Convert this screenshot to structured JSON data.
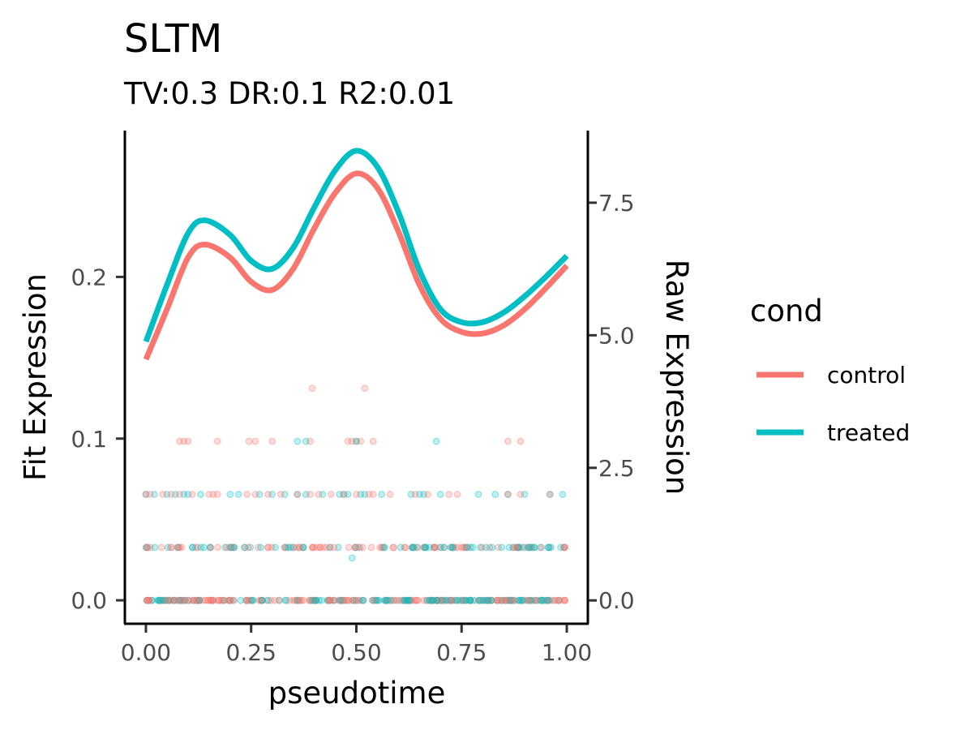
{
  "chart_data": {
    "type": "line",
    "title": "SLTM",
    "subtitle": "TV:0.3 DR:0.1 R2:0.01",
    "xlabel": "pseudotime",
    "ylabel": "Fit Expression",
    "y2label": "Raw Expression",
    "xlim": [
      -0.05,
      1.05
    ],
    "ylim": [
      -0.0145,
      0.2905
    ],
    "y2lim": [
      -0.44,
      8.86
    ],
    "x_ticks": [
      "0.00",
      "0.25",
      "0.50",
      "0.75",
      "1.00"
    ],
    "y_ticks": [
      "0.0",
      "0.1",
      "0.2"
    ],
    "y2_ticks": [
      "0.0",
      "2.5",
      "5.0",
      "7.5"
    ],
    "legend": {
      "title": "cond",
      "placement": "right"
    },
    "grid": false,
    "series": [
      {
        "name": "control",
        "color": "#F8766D",
        "x": [
          0.0,
          0.05,
          0.1,
          0.14,
          0.2,
          0.25,
          0.3,
          0.35,
          0.4,
          0.45,
          0.5,
          0.55,
          0.6,
          0.65,
          0.7,
          0.75,
          0.8,
          0.85,
          0.9,
          0.95,
          1.0
        ],
        "y": [
          0.149,
          0.18,
          0.212,
          0.22,
          0.212,
          0.197,
          0.192,
          0.205,
          0.23,
          0.252,
          0.264,
          0.255,
          0.228,
          0.195,
          0.174,
          0.166,
          0.165,
          0.17,
          0.18,
          0.193,
          0.207
        ]
      },
      {
        "name": "treated",
        "color": "#00BFC4",
        "x": [
          0.0,
          0.05,
          0.1,
          0.14,
          0.2,
          0.25,
          0.3,
          0.35,
          0.4,
          0.45,
          0.5,
          0.55,
          0.6,
          0.65,
          0.7,
          0.75,
          0.8,
          0.85,
          0.9,
          0.95,
          1.0
        ],
        "y": [
          0.16,
          0.195,
          0.227,
          0.235,
          0.226,
          0.21,
          0.205,
          0.218,
          0.243,
          0.266,
          0.278,
          0.268,
          0.24,
          0.204,
          0.18,
          0.172,
          0.172,
          0.178,
          0.188,
          0.2,
          0.213
        ]
      }
    ],
    "raw_points": [
      {
        "cond": "control",
        "y": 4,
        "x": [
          0.395,
          0.52
        ]
      },
      {
        "cond": "control",
        "y": 3,
        "x": [
          0.08,
          0.09,
          0.1,
          0.17,
          0.245,
          0.26,
          0.3,
          0.39,
          0.48,
          0.49,
          0.5,
          0.51,
          0.54,
          0.86,
          0.89
        ]
      },
      {
        "cond": "treated",
        "y": 3,
        "x": [
          0.36,
          0.38,
          0.5,
          0.69
        ]
      },
      {
        "cond": "treated",
        "y": 2,
        "x": [
          0.0,
          0.02,
          0.05,
          0.07,
          0.09,
          0.1,
          0.13,
          0.2,
          0.22,
          0.27,
          0.3,
          0.33,
          0.36,
          0.38,
          0.42,
          0.46,
          0.47,
          0.48,
          0.51,
          0.52,
          0.56,
          0.63,
          0.65,
          0.66,
          0.7,
          0.79,
          0.83,
          0.86,
          0.9,
          0.96,
          0.99
        ]
      },
      {
        "cond": "control",
        "y": 2,
        "x": [
          0.0,
          0.01,
          0.04,
          0.06,
          0.08,
          0.11,
          0.15,
          0.16,
          0.17,
          0.24,
          0.26,
          0.29,
          0.32,
          0.36,
          0.39,
          0.41,
          0.44,
          0.47,
          0.5,
          0.53,
          0.54,
          0.58,
          0.64,
          0.67,
          0.72,
          0.74,
          0.86,
          0.89,
          0.96
        ]
      },
      {
        "cond": "treated",
        "y": 0.8,
        "x": [
          0.49
        ]
      }
    ],
    "dense_rows": [
      {
        "y": 1,
        "x": [
          0.0,
          1.0
        ],
        "count": 160
      },
      {
        "y": 0,
        "x": [
          0.0,
          1.0
        ],
        "count": 320
      }
    ]
  }
}
